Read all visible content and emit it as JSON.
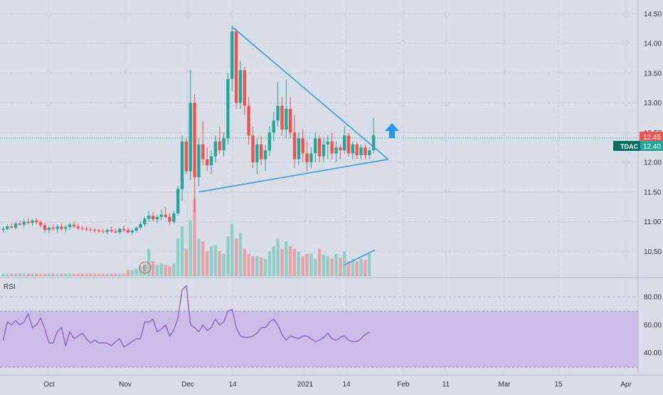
{
  "chart_data": [
    {
      "type": "candlestick",
      "symbol": "TDAC",
      "price_axis": {
        "ticks": [
          "14.50",
          "14.00",
          "13.50",
          "13.00",
          "12.50",
          "12.00",
          "11.50",
          "11.00",
          "10.50"
        ],
        "range": [
          10.0,
          14.6
        ]
      },
      "time_axis": {
        "ticks": [
          "Oct",
          "Nov",
          "Dec",
          "14",
          "2021",
          "14",
          "Feb",
          "11",
          "Mar",
          "15",
          "Apr"
        ]
      },
      "last_price": "12.45",
      "ticker_price": "12.40",
      "colors": {
        "up": "#26a69a",
        "down": "#ef5350",
        "up_volume": "#8fcfc7",
        "down_volume": "#e8a3a7",
        "drawing": "#2e9ad6",
        "arrow": "#2196f3"
      },
      "earnings_marker": "E",
      "candles": [
        {
          "t": "Sep 21",
          "o": 10.86,
          "h": 10.92,
          "l": 10.82,
          "c": 10.88
        },
        {
          "t": "Sep 22",
          "o": 10.88,
          "h": 10.95,
          "l": 10.85,
          "c": 10.92
        },
        {
          "t": "Sep 23",
          "o": 10.92,
          "h": 10.98,
          "l": 10.88,
          "c": 10.9
        },
        {
          "t": "Sep 24",
          "o": 10.9,
          "h": 11.0,
          "l": 10.87,
          "c": 10.97
        },
        {
          "t": "Sep 25",
          "o": 10.97,
          "h": 11.02,
          "l": 10.93,
          "c": 10.95
        },
        {
          "t": "Sep 28",
          "o": 10.95,
          "h": 11.05,
          "l": 10.9,
          "c": 11.0
        },
        {
          "t": "Sep 29",
          "o": 11.0,
          "h": 11.06,
          "l": 10.95,
          "c": 10.98
        },
        {
          "t": "Sep 30",
          "o": 10.98,
          "h": 11.04,
          "l": 10.93,
          "c": 11.02
        },
        {
          "t": "Oct 1",
          "o": 11.02,
          "h": 11.06,
          "l": 10.96,
          "c": 10.99
        },
        {
          "t": "Oct 2",
          "o": 10.99,
          "h": 11.03,
          "l": 10.9,
          "c": 10.94
        },
        {
          "t": "Oct 5",
          "o": 10.94,
          "h": 10.98,
          "l": 10.82,
          "c": 10.86
        },
        {
          "t": "Oct 6",
          "o": 10.86,
          "h": 10.92,
          "l": 10.8,
          "c": 10.9
        },
        {
          "t": "Oct 7",
          "o": 10.9,
          "h": 10.96,
          "l": 10.84,
          "c": 10.88
        },
        {
          "t": "Oct 8",
          "o": 10.88,
          "h": 10.95,
          "l": 10.82,
          "c": 10.92
        },
        {
          "t": "Oct 9",
          "o": 10.92,
          "h": 10.97,
          "l": 10.85,
          "c": 10.88
        },
        {
          "t": "Oct 12",
          "o": 10.88,
          "h": 10.94,
          "l": 10.83,
          "c": 10.91
        },
        {
          "t": "Oct 13",
          "o": 10.91,
          "h": 10.98,
          "l": 10.86,
          "c": 10.95
        },
        {
          "t": "Oct 14",
          "o": 10.95,
          "h": 11.0,
          "l": 10.89,
          "c": 10.92
        },
        {
          "t": "Oct 15",
          "o": 10.92,
          "h": 10.97,
          "l": 10.86,
          "c": 10.89
        },
        {
          "t": "Oct 16",
          "o": 10.89,
          "h": 10.93,
          "l": 10.84,
          "c": 10.88
        },
        {
          "t": "Oct 19",
          "o": 10.88,
          "h": 10.92,
          "l": 10.84,
          "c": 10.87
        },
        {
          "t": "Oct 20",
          "o": 10.87,
          "h": 10.91,
          "l": 10.83,
          "c": 10.86
        },
        {
          "t": "Oct 21",
          "o": 10.86,
          "h": 10.9,
          "l": 10.82,
          "c": 10.85
        },
        {
          "t": "Oct 22",
          "o": 10.85,
          "h": 10.89,
          "l": 10.81,
          "c": 10.84
        },
        {
          "t": "Oct 23",
          "o": 10.84,
          "h": 10.88,
          "l": 10.8,
          "c": 10.83
        },
        {
          "t": "Oct 26",
          "o": 10.83,
          "h": 10.88,
          "l": 10.79,
          "c": 10.86
        },
        {
          "t": "Oct 27",
          "o": 10.86,
          "h": 10.92,
          "l": 10.82,
          "c": 10.84
        },
        {
          "t": "Oct 28",
          "o": 10.84,
          "h": 10.88,
          "l": 10.8,
          "c": 10.82
        },
        {
          "t": "Oct 29",
          "o": 10.82,
          "h": 10.9,
          "l": 10.79,
          "c": 10.88
        },
        {
          "t": "Oct 30",
          "o": 10.88,
          "h": 10.93,
          "l": 10.83,
          "c": 10.86
        },
        {
          "t": "Nov 2",
          "o": 10.86,
          "h": 10.9,
          "l": 10.8,
          "c": 10.82
        },
        {
          "t": "Nov 3",
          "o": 10.82,
          "h": 10.88,
          "l": 10.78,
          "c": 10.85
        },
        {
          "t": "Nov 4",
          "o": 10.85,
          "h": 10.92,
          "l": 10.82,
          "c": 10.9
        },
        {
          "t": "Nov 5",
          "o": 10.9,
          "h": 11.0,
          "l": 10.86,
          "c": 10.96
        },
        {
          "t": "Nov 6",
          "o": 10.96,
          "h": 11.08,
          "l": 10.92,
          "c": 11.05
        },
        {
          "t": "Nov 9",
          "o": 11.05,
          "h": 11.18,
          "l": 11.0,
          "c": 11.1
        },
        {
          "t": "Nov 10",
          "o": 11.1,
          "h": 11.16,
          "l": 11.0,
          "c": 11.04
        },
        {
          "t": "Nov 11",
          "o": 11.04,
          "h": 11.12,
          "l": 10.98,
          "c": 11.08
        },
        {
          "t": "Nov 12",
          "o": 11.08,
          "h": 11.2,
          "l": 11.02,
          "c": 11.12
        },
        {
          "t": "Nov 13",
          "o": 11.12,
          "h": 11.24,
          "l": 11.05,
          "c": 11.08
        },
        {
          "t": "Nov 16",
          "o": 11.08,
          "h": 11.15,
          "l": 10.95,
          "c": 11.0
        },
        {
          "t": "Nov 17",
          "o": 11.0,
          "h": 11.18,
          "l": 10.96,
          "c": 11.14
        },
        {
          "t": "Nov 18",
          "o": 11.14,
          "h": 11.6,
          "l": 11.1,
          "c": 11.55
        },
        {
          "t": "Nov 19",
          "o": 11.55,
          "h": 12.45,
          "l": 11.35,
          "c": 12.35
        },
        {
          "t": "Nov 20",
          "o": 12.35,
          "h": 12.4,
          "l": 11.8,
          "c": 11.85
        },
        {
          "t": "Nov 23",
          "o": 11.85,
          "h": 13.55,
          "l": 11.7,
          "c": 13.0
        },
        {
          "t": "Nov 24",
          "o": 13.0,
          "h": 13.15,
          "l": 11.15,
          "c": 11.75
        },
        {
          "t": "Nov 25",
          "o": 11.75,
          "h": 12.4,
          "l": 11.6,
          "c": 12.3
        },
        {
          "t": "Nov 27",
          "o": 12.3,
          "h": 12.7,
          "l": 11.95,
          "c": 12.05
        },
        {
          "t": "Nov 30",
          "o": 12.05,
          "h": 12.25,
          "l": 11.85,
          "c": 11.95
        },
        {
          "t": "Dec 1",
          "o": 11.95,
          "h": 12.2,
          "l": 11.8,
          "c": 12.1
        },
        {
          "t": "Dec 2",
          "o": 12.1,
          "h": 12.45,
          "l": 12.0,
          "c": 12.35
        },
        {
          "t": "Dec 3",
          "o": 12.35,
          "h": 12.6,
          "l": 12.15,
          "c": 12.2
        },
        {
          "t": "Dec 4",
          "o": 12.2,
          "h": 12.5,
          "l": 12.1,
          "c": 12.4
        },
        {
          "t": "Dec 7",
          "o": 12.4,
          "h": 13.5,
          "l": 12.3,
          "c": 13.4
        },
        {
          "t": "Dec 8",
          "o": 13.4,
          "h": 14.3,
          "l": 13.2,
          "c": 14.2
        },
        {
          "t": "Dec 9",
          "o": 14.2,
          "h": 14.25,
          "l": 12.9,
          "c": 13.0
        },
        {
          "t": "Dec 10",
          "o": 13.0,
          "h": 13.7,
          "l": 12.9,
          "c": 13.55
        },
        {
          "t": "Dec 11",
          "o": 13.55,
          "h": 13.6,
          "l": 12.8,
          "c": 12.95
        },
        {
          "t": "Dec 14",
          "o": 12.95,
          "h": 13.1,
          "l": 12.3,
          "c": 12.45
        },
        {
          "t": "Dec 15",
          "o": 12.45,
          "h": 12.6,
          "l": 11.9,
          "c": 12.0
        },
        {
          "t": "Dec 16",
          "o": 12.0,
          "h": 12.4,
          "l": 11.8,
          "c": 12.3
        },
        {
          "t": "Dec 17",
          "o": 12.3,
          "h": 12.45,
          "l": 11.95,
          "c": 12.05
        },
        {
          "t": "Dec 18",
          "o": 12.05,
          "h": 12.3,
          "l": 11.85,
          "c": 12.2
        },
        {
          "t": "Dec 21",
          "o": 12.2,
          "h": 12.6,
          "l": 12.1,
          "c": 12.5
        },
        {
          "t": "Dec 22",
          "o": 12.5,
          "h": 12.85,
          "l": 12.35,
          "c": 12.7
        },
        {
          "t": "Dec 23",
          "o": 12.7,
          "h": 13.35,
          "l": 12.6,
          "c": 12.95
        },
        {
          "t": "Dec 24",
          "o": 12.95,
          "h": 13.1,
          "l": 12.45,
          "c": 12.55
        },
        {
          "t": "Dec 28",
          "o": 12.55,
          "h": 13.4,
          "l": 12.4,
          "c": 12.9
        },
        {
          "t": "Dec 29",
          "o": 12.9,
          "h": 13.1,
          "l": 12.4,
          "c": 12.5
        },
        {
          "t": "Dec 30",
          "o": 12.5,
          "h": 12.8,
          "l": 11.9,
          "c": 12.05
        },
        {
          "t": "Dec 31",
          "o": 12.05,
          "h": 12.5,
          "l": 11.95,
          "c": 12.4
        },
        {
          "t": "Jan 4",
          "o": 12.4,
          "h": 12.55,
          "l": 12.0,
          "c": 12.15
        },
        {
          "t": "Jan 5",
          "o": 12.15,
          "h": 12.35,
          "l": 11.85,
          "c": 12.0
        },
        {
          "t": "Jan 6",
          "o": 12.0,
          "h": 12.25,
          "l": 11.9,
          "c": 12.15
        },
        {
          "t": "Jan 7",
          "o": 12.15,
          "h": 12.5,
          "l": 12.0,
          "c": 12.4
        },
        {
          "t": "Jan 8",
          "o": 12.4,
          "h": 12.45,
          "l": 12.0,
          "c": 12.1
        },
        {
          "t": "Jan 11",
          "o": 12.1,
          "h": 12.4,
          "l": 12.0,
          "c": 12.3
        },
        {
          "t": "Jan 12",
          "o": 12.3,
          "h": 12.45,
          "l": 12.05,
          "c": 12.35
        },
        {
          "t": "Jan 13",
          "o": 12.35,
          "h": 12.5,
          "l": 12.05,
          "c": 12.15
        },
        {
          "t": "Jan 14",
          "o": 12.15,
          "h": 12.35,
          "l": 12.0,
          "c": 12.25
        },
        {
          "t": "Jan 15",
          "o": 12.25,
          "h": 12.3,
          "l": 12.05,
          "c": 12.2
        },
        {
          "t": "Jan 19",
          "o": 12.2,
          "h": 12.6,
          "l": 12.15,
          "c": 12.45
        },
        {
          "t": "Jan 20",
          "o": 12.45,
          "h": 12.5,
          "l": 12.1,
          "c": 12.15
        },
        {
          "t": "Jan 21",
          "o": 12.15,
          "h": 12.35,
          "l": 12.05,
          "c": 12.3
        },
        {
          "t": "Jan 22",
          "o": 12.3,
          "h": 12.35,
          "l": 12.05,
          "c": 12.12
        },
        {
          "t": "Jan 25",
          "o": 12.12,
          "h": 12.3,
          "l": 12.05,
          "c": 12.25
        },
        {
          "t": "Jan 26",
          "o": 12.25,
          "h": 12.3,
          "l": 12.05,
          "c": 12.12
        },
        {
          "t": "Jan 27",
          "o": 12.12,
          "h": 12.25,
          "l": 12.05,
          "c": 12.2
        },
        {
          "t": "Jan 28",
          "o": 12.2,
          "h": 12.75,
          "l": 12.15,
          "c": 12.45
        }
      ],
      "volume": [
        2,
        2,
        2,
        2,
        2,
        2,
        2,
        2,
        2,
        2,
        2,
        2,
        2,
        2,
        2,
        2,
        2,
        2,
        2,
        2,
        2,
        2,
        2,
        2,
        2,
        2,
        2,
        2,
        2,
        2,
        5,
        5,
        6,
        8,
        10,
        22,
        12,
        9,
        10,
        9,
        8,
        10,
        30,
        40,
        22,
        45,
        62,
        30,
        28,
        20,
        24,
        25,
        20,
        18,
        32,
        42,
        30,
        35,
        22,
        18,
        16,
        16,
        15,
        14,
        20,
        24,
        30,
        22,
        28,
        24,
        22,
        20,
        16,
        18,
        18,
        14,
        22,
        17,
        16,
        14,
        18,
        15,
        20,
        12,
        14,
        12,
        14,
        13,
        18
      ],
      "volume_up": [
        true,
        true,
        false,
        true,
        false,
        true,
        false,
        true,
        false,
        false,
        false,
        true,
        false,
        true,
        false,
        true,
        true,
        false,
        false,
        false,
        false,
        false,
        false,
        false,
        false,
        true,
        false,
        false,
        true,
        false,
        false,
        true,
        true,
        true,
        true,
        true,
        false,
        true,
        true,
        false,
        false,
        true,
        true,
        true,
        false,
        true,
        false,
        true,
        false,
        false,
        true,
        true,
        false,
        true,
        true,
        true,
        false,
        true,
        false,
        false,
        false,
        true,
        false,
        true,
        true,
        true,
        true,
        false,
        true,
        false,
        false,
        true,
        false,
        false,
        true,
        true,
        false,
        true,
        true,
        false,
        true,
        false,
        true,
        false,
        true,
        false,
        true,
        false,
        true
      ],
      "drawings": {
        "triangle_upper": {
          "from": {
            "t": "Dec 8",
            "p": 14.28
          },
          "to": {
            "t": "Feb 1",
            "p": 12.05
          }
        },
        "triangle_lower": {
          "from": {
            "t": "Nov 25",
            "p": 11.5
          },
          "to": {
            "t": "Feb 1",
            "p": 12.05
          }
        },
        "volume_trend": {
          "from": {
            "t": "Jan 19",
            "v": 9
          },
          "to": {
            "t": "Jan 28",
            "v": 21
          }
        }
      }
    },
    {
      "type": "line",
      "title": "RSI",
      "y_ticks": [
        "80.00",
        "60.00",
        "40.00"
      ],
      "band": [
        30,
        70
      ],
      "colors": {
        "line": "#8f4fc2",
        "band": "#cbbde8"
      },
      "values": [
        49,
        62,
        60,
        63,
        60,
        62,
        68,
        58,
        60,
        65,
        57,
        47,
        47,
        55,
        58,
        45,
        55,
        50,
        52,
        54,
        50,
        47,
        49,
        47,
        47,
        47,
        45,
        48,
        50,
        44,
        46,
        48,
        50,
        50,
        62,
        62,
        64,
        55,
        57,
        60,
        52,
        56,
        65,
        85,
        88,
        60,
        58,
        55,
        60,
        56,
        58,
        64,
        60,
        62,
        70,
        71,
        58,
        52,
        51,
        51,
        52,
        54,
        58,
        58,
        62,
        64,
        60,
        53,
        49,
        52,
        51,
        50,
        52,
        52,
        50,
        48,
        49,
        51,
        54,
        50,
        49,
        51,
        52,
        49,
        48,
        48,
        50,
        53,
        55
      ]
    }
  ]
}
